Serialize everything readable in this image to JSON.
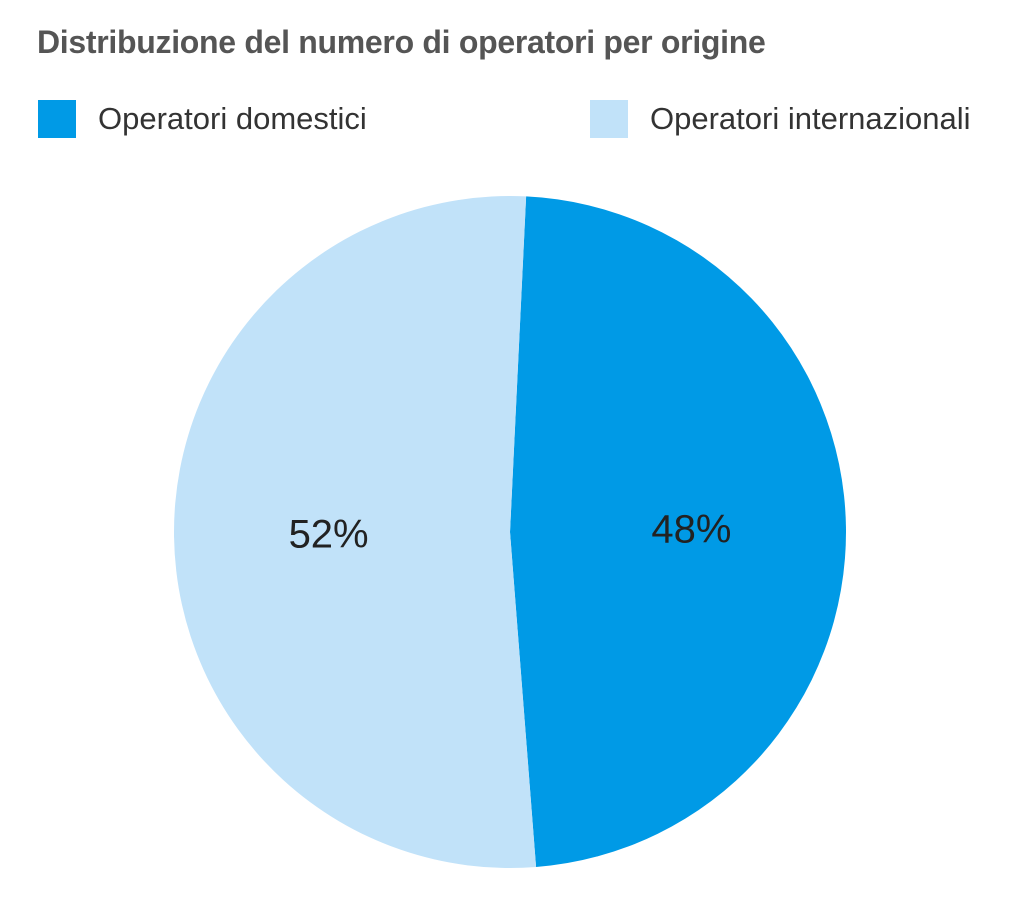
{
  "chart_data": {
    "type": "pie",
    "title": "Distribuzione del numero di operatori per origine",
    "legend": "top",
    "series": [
      {
        "name": "Operatori domestici",
        "value": 48,
        "label": "48%",
        "color": "#009ae6"
      },
      {
        "name": "Operatori internazionali",
        "value": 52,
        "label": "52%",
        "color": "#c1e2f9"
      }
    ]
  }
}
